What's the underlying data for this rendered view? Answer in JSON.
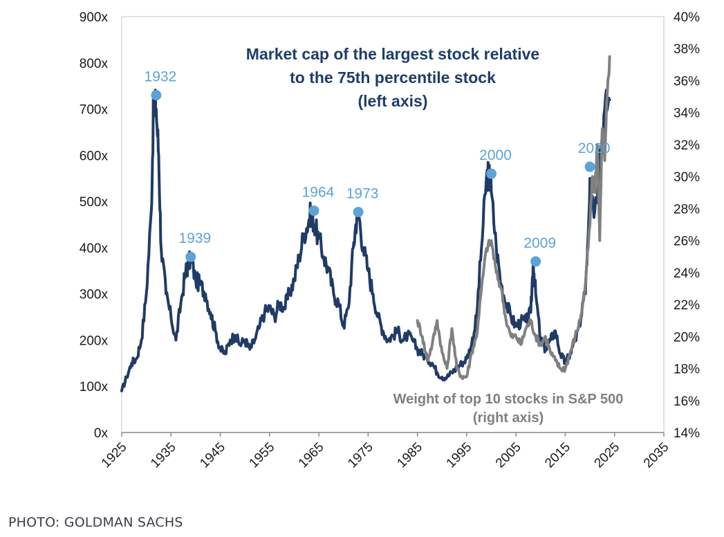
{
  "chart_data": {
    "type": "line",
    "title_lines": [
      "Market cap of the largest stock relative",
      "to the 75th percentile stock",
      "(left axis)"
    ],
    "x_ticks": [
      "1925",
      "1935",
      "1945",
      "1955",
      "1965",
      "1975",
      "1985",
      "1995",
      "2005",
      "2015",
      "2025",
      "2035"
    ],
    "xlim": [
      1925,
      2035
    ],
    "y_left": {
      "lim": [
        0,
        900
      ],
      "ticks": [
        "0x",
        "100x",
        "200x",
        "300x",
        "400x",
        "500x",
        "600x",
        "700x",
        "800x",
        "900x"
      ]
    },
    "y_right": {
      "lim": [
        14,
        40
      ],
      "ticks": [
        "14%",
        "16%",
        "18%",
        "20%",
        "22%",
        "24%",
        "26%",
        "28%",
        "30%",
        "32%",
        "34%",
        "36%",
        "38%",
        "40%"
      ]
    },
    "series": [
      {
        "name": "Market cap of the largest stock relative to the 75th percentile stock",
        "axis": "left",
        "color": "#1f3b66",
        "x": [
          1925,
          1926,
          1927,
          1928,
          1929,
          1930,
          1931,
          1931.5,
          1932,
          1932.5,
          1933,
          1934,
          1935,
          1936,
          1937,
          1938,
          1938.5,
          1939,
          1940,
          1941,
          1942,
          1943,
          1944,
          1945,
          1946,
          1947,
          1948,
          1949,
          1950,
          1951,
          1952,
          1953,
          1954,
          1955,
          1956,
          1957,
          1958,
          1959,
          1960,
          1961,
          1962,
          1963,
          1963.5,
          1964,
          1965,
          1966,
          1967,
          1968,
          1969,
          1970,
          1971,
          1972,
          1972.5,
          1973,
          1974,
          1975,
          1976,
          1977,
          1978,
          1979,
          1980,
          1981,
          1982,
          1983,
          1984,
          1985,
          1986,
          1987,
          1988,
          1989,
          1990,
          1991,
          1992,
          1993,
          1994,
          1995,
          1996,
          1997,
          1998,
          1999,
          1999.5,
          2000,
          2001,
          2002,
          2003,
          2004,
          2005,
          2006,
          2007,
          2008,
          2008.5,
          2009,
          2010,
          2011,
          2012,
          2013,
          2014,
          2015,
          2016,
          2017,
          2018,
          2019,
          2019.5,
          2020,
          2021,
          2022,
          2023,
          2024
        ],
        "values": [
          90,
          120,
          150,
          160,
          200,
          300,
          480,
          720,
          700,
          600,
          400,
          300,
          250,
          200,
          280,
          350,
          360,
          380,
          330,
          320,
          300,
          260,
          220,
          180,
          170,
          200,
          210,
          190,
          200,
          180,
          200,
          230,
          260,
          270,
          250,
          280,
          270,
          300,
          330,
          380,
          430,
          460,
          480,
          450,
          420,
          380,
          350,
          300,
          280,
          230,
          270,
          400,
          450,
          480,
          400,
          350,
          300,
          250,
          220,
          200,
          210,
          220,
          200,
          210,
          200,
          180,
          170,
          160,
          150,
          130,
          120,
          120,
          130,
          140,
          150,
          160,
          190,
          250,
          400,
          550,
          560,
          520,
          400,
          320,
          280,
          250,
          230,
          240,
          240,
          260,
          370,
          300,
          200,
          180,
          200,
          220,
          170,
          150,
          170,
          200,
          230,
          300,
          400,
          550,
          480,
          600,
          700,
          720
        ],
        "annotations": [
          {
            "x": 1932,
            "y": 730,
            "label": "1932"
          },
          {
            "x": 1939,
            "y": 380,
            "label": "1939"
          },
          {
            "x": 1964,
            "y": 480,
            "label": "1964"
          },
          {
            "x": 1973,
            "y": 477,
            "label": "1973"
          },
          {
            "x": 2000,
            "y": 560,
            "label": "2000"
          },
          {
            "x": 2009,
            "y": 370,
            "label": "2009"
          },
          {
            "x": 2020,
            "y": 575,
            "label": "2020"
          }
        ]
      },
      {
        "name": "Weight of top 10 stocks in S&P 500",
        "axis": "right",
        "color": "#808080",
        "x": [
          1985,
          1986,
          1987,
          1988,
          1989,
          1990,
          1991,
          1992,
          1993,
          1994,
          1995,
          1996,
          1997,
          1998,
          1999,
          2000,
          2001,
          2002,
          2003,
          2004,
          2005,
          2006,
          2007,
          2008,
          2009,
          2010,
          2011,
          2012,
          2013,
          2014,
          2015,
          2016,
          2017,
          2018,
          2019,
          2020,
          2020.5,
          2021,
          2021.5,
          2022,
          2022.5,
          2023,
          2023.5,
          2024
        ],
        "values": [
          21,
          20,
          18.5,
          19.5,
          21,
          19,
          18,
          20.5,
          18,
          17.5,
          17.5,
          19,
          20,
          23,
          25.5,
          26,
          24,
          23,
          21,
          20,
          20,
          19.5,
          20.5,
          21,
          20,
          19.5,
          20,
          19,
          18.5,
          18,
          18,
          19,
          20,
          21,
          23,
          27,
          30,
          29,
          32,
          26,
          33,
          31,
          35,
          37.5
        ]
      }
    ],
    "annotations": {
      "left_series_title": [
        "Market cap of the largest stock relative",
        "to the 75th percentile stock",
        "(left axis)"
      ],
      "right_series_title": [
        "Weight of top 10 stocks in S&P 500",
        "(right axis)"
      ]
    }
  },
  "caption": "PHOTO: GOLDMAN SACHS",
  "colors": {
    "navy": "#1f3b66",
    "gray": "#808080",
    "peak_blue": "#5ba3d9",
    "title": "#1f3d6b"
  }
}
